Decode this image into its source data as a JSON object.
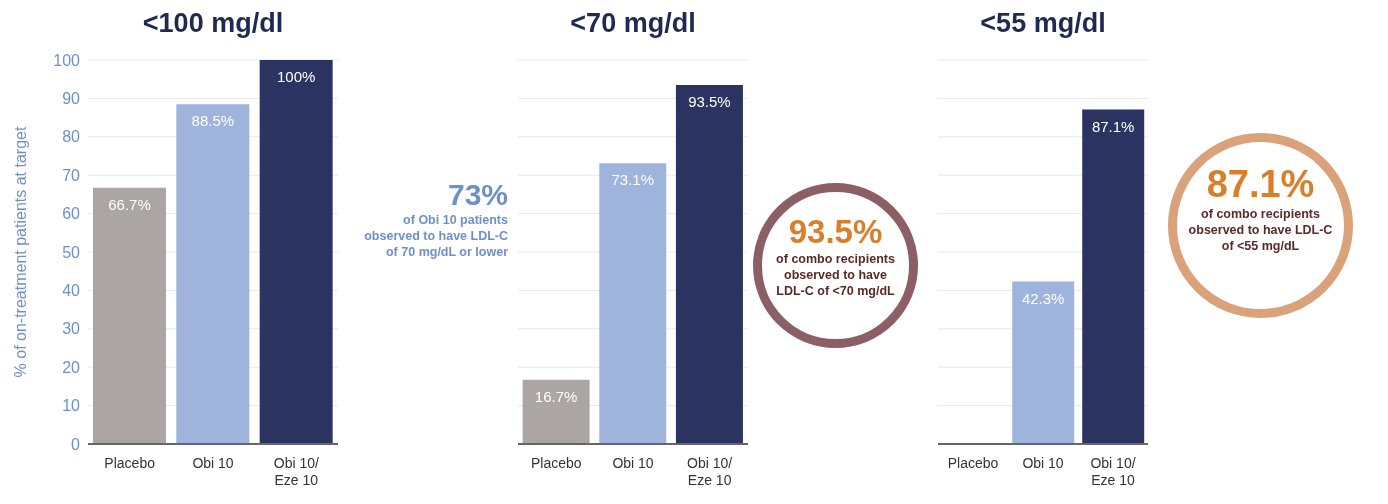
{
  "chart_data": [
    {
      "type": "bar",
      "title": "<100 mg/dl",
      "ylabel": "% of on-treatment patients at target",
      "categories": [
        "Placebo",
        "Obi 10",
        "Obi 10/Eze 10"
      ],
      "values": [
        66.7,
        88.5,
        100
      ],
      "colors": [
        "#aba6a4",
        "#9fb4dd",
        "#2b3461"
      ],
      "value_labels": [
        "66.7%",
        "88.5%",
        "100%"
      ],
      "ylim": [
        0,
        100
      ],
      "yticks": [
        0,
        10,
        20,
        30,
        40,
        50,
        60,
        70,
        80,
        90,
        100
      ],
      "grid": "y"
    },
    {
      "type": "bar",
      "title": "<70 mg/dl",
      "categories": [
        "Placebo",
        "Obi 10",
        "Obi 10/Eze 10"
      ],
      "values": [
        16.7,
        73.1,
        93.5
      ],
      "colors": [
        "#aba6a4",
        "#9fb4dd",
        "#2b3461"
      ],
      "value_labels": [
        "16.7%",
        "73.1%",
        "93.5%"
      ],
      "ylim": [
        0,
        100
      ],
      "yticks": [
        0,
        10,
        20,
        30,
        40,
        50,
        60,
        70,
        80,
        90,
        100
      ],
      "grid": "y",
      "tick_labels": "x",
      "annotations": [
        "73% of Obi 10 patients observed to have LDL-C of 70 mg/dL or lower",
        "93.5% of combo recipients observed to have LDL-C of <70 mg/dL"
      ]
    },
    {
      "type": "bar",
      "title": "<55 mg/dl",
      "categories": [
        "Placebo",
        "Obi 10",
        "Obi 10/Eze 10"
      ],
      "values": [
        0,
        42.3,
        87.1
      ],
      "colors": [
        "#aba6a4",
        "#9fb4dd",
        "#2b3461"
      ],
      "value_labels": [
        null,
        "42.3%",
        "87.1%"
      ],
      "ylim": [
        0,
        100
      ],
      "yticks": [
        0,
        10,
        20,
        30,
        40,
        50,
        60,
        70,
        80,
        90,
        100
      ],
      "grid": "y",
      "tick_labels": "x",
      "annotations": [
        "87.1% of combo recipients observed to have LDL-C of <55 mg/dL"
      ]
    }
  ]
}
